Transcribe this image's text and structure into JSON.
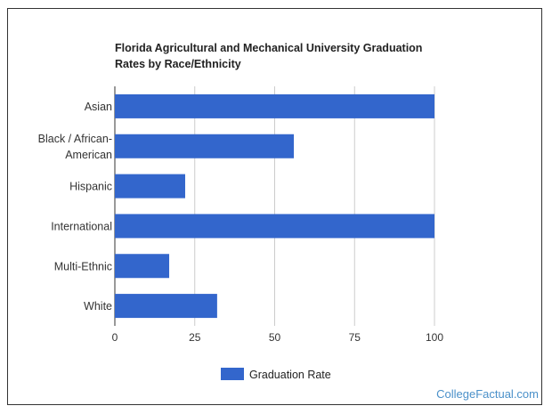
{
  "chart_data": {
    "type": "bar",
    "orientation": "horizontal",
    "title_lines": [
      "Florida Agricultural and Mechanical University Graduation",
      "Rates by Race/Ethnicity"
    ],
    "categories": [
      [
        "Asian"
      ],
      [
        "Black / African-",
        "American"
      ],
      [
        "Hispanic"
      ],
      [
        "International"
      ],
      [
        "Multi-Ethnic"
      ],
      [
        "White"
      ]
    ],
    "series": [
      {
        "name": "Graduation Rate",
        "values": [
          100,
          56,
          22,
          100,
          17,
          32
        ]
      }
    ],
    "xlim": [
      0,
      100
    ],
    "xticks": [
      "0",
      "25",
      "50",
      "75",
      "100"
    ],
    "grid": true,
    "legend_position": "bottom",
    "bar_color": "#3366cc"
  },
  "watermark": "CollegeFactual.com"
}
